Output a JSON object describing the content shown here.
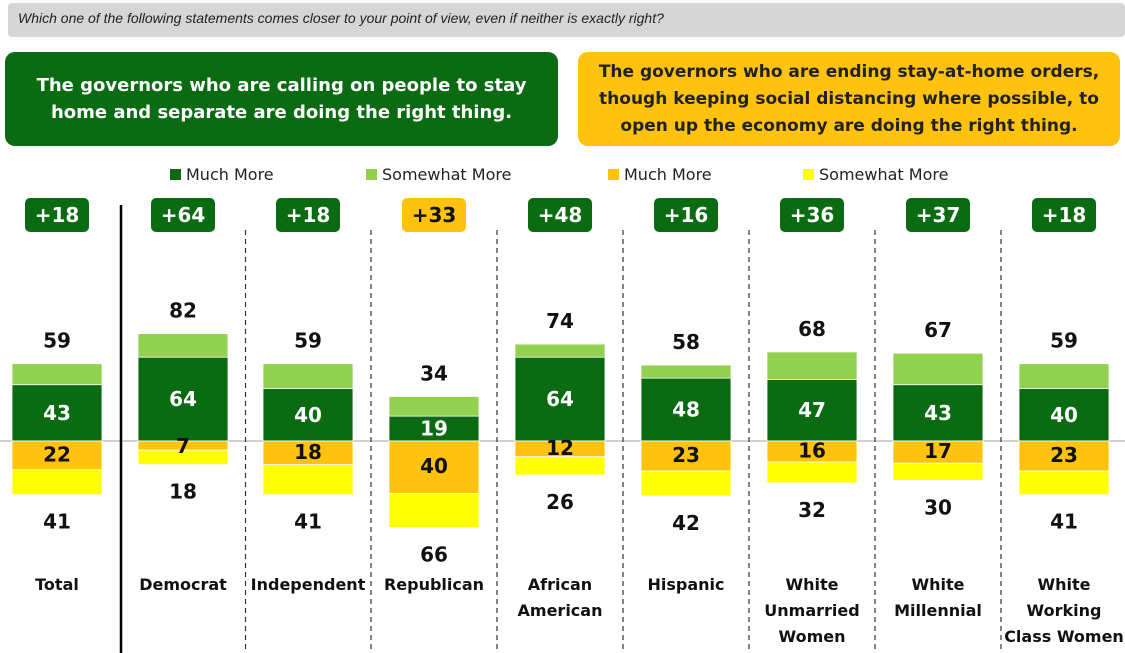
{
  "question": "Which one of the following statements comes closer to your point of view, even if neither is exactly right?",
  "statements": {
    "left": "The governors who are calling on people to stay home and separate are doing the right thing.",
    "right": "The governors who are ending stay-at-home orders, though keeping social distancing where possible, to open up the economy are doing the right thing."
  },
  "colors": {
    "dark_green": "#0a6b12",
    "light_green": "#92d050",
    "orange": "#ffc20e",
    "yellow": "#ffff00"
  },
  "chart_data": {
    "type": "bar",
    "subtype": "diverging stacked bar",
    "legend": [
      {
        "label": "Much More",
        "color": "#0a6b12"
      },
      {
        "label": "Somewhat More",
        "color": "#92d050"
      },
      {
        "label": "Much More",
        "color": "#ffc20e"
      },
      {
        "label": "Somewhat More",
        "color": "#ffff00"
      }
    ],
    "categories": [
      [
        "Total"
      ],
      [
        "Democrat"
      ],
      [
        "Independent"
      ],
      [
        "Republican"
      ],
      [
        "African",
        "American"
      ],
      [
        "Hispanic"
      ],
      [
        "White",
        "Unmarried",
        "Women"
      ],
      [
        "White",
        "Millennial"
      ],
      [
        "White",
        "Working",
        "Class Women"
      ]
    ],
    "margins": [
      "+18",
      "+64",
      "+18",
      "+33",
      "+48",
      "+16",
      "+36",
      "+37",
      "+18"
    ],
    "margin_side": [
      "left",
      "left",
      "left",
      "right",
      "left",
      "left",
      "left",
      "left",
      "left"
    ],
    "series": [
      {
        "name": "Much More",
        "side": "left",
        "values": [
          43,
          64,
          40,
          19,
          64,
          48,
          47,
          43,
          40
        ]
      },
      {
        "name": "Somewhat More",
        "side": "left",
        "values": [
          16,
          18,
          19,
          15,
          10,
          10,
          21,
          24,
          19
        ]
      },
      {
        "name": "Much More",
        "side": "right",
        "values": [
          22,
          7,
          18,
          40,
          12,
          23,
          16,
          17,
          23
        ]
      },
      {
        "name": "Somewhat More",
        "side": "right",
        "values": [
          19,
          11,
          23,
          26,
          14,
          19,
          16,
          13,
          18
        ]
      }
    ],
    "left_totals": [
      59,
      82,
      59,
      34,
      74,
      58,
      68,
      67,
      59
    ],
    "right_totals": [
      41,
      18,
      41,
      66,
      26,
      42,
      32,
      30,
      41
    ]
  }
}
